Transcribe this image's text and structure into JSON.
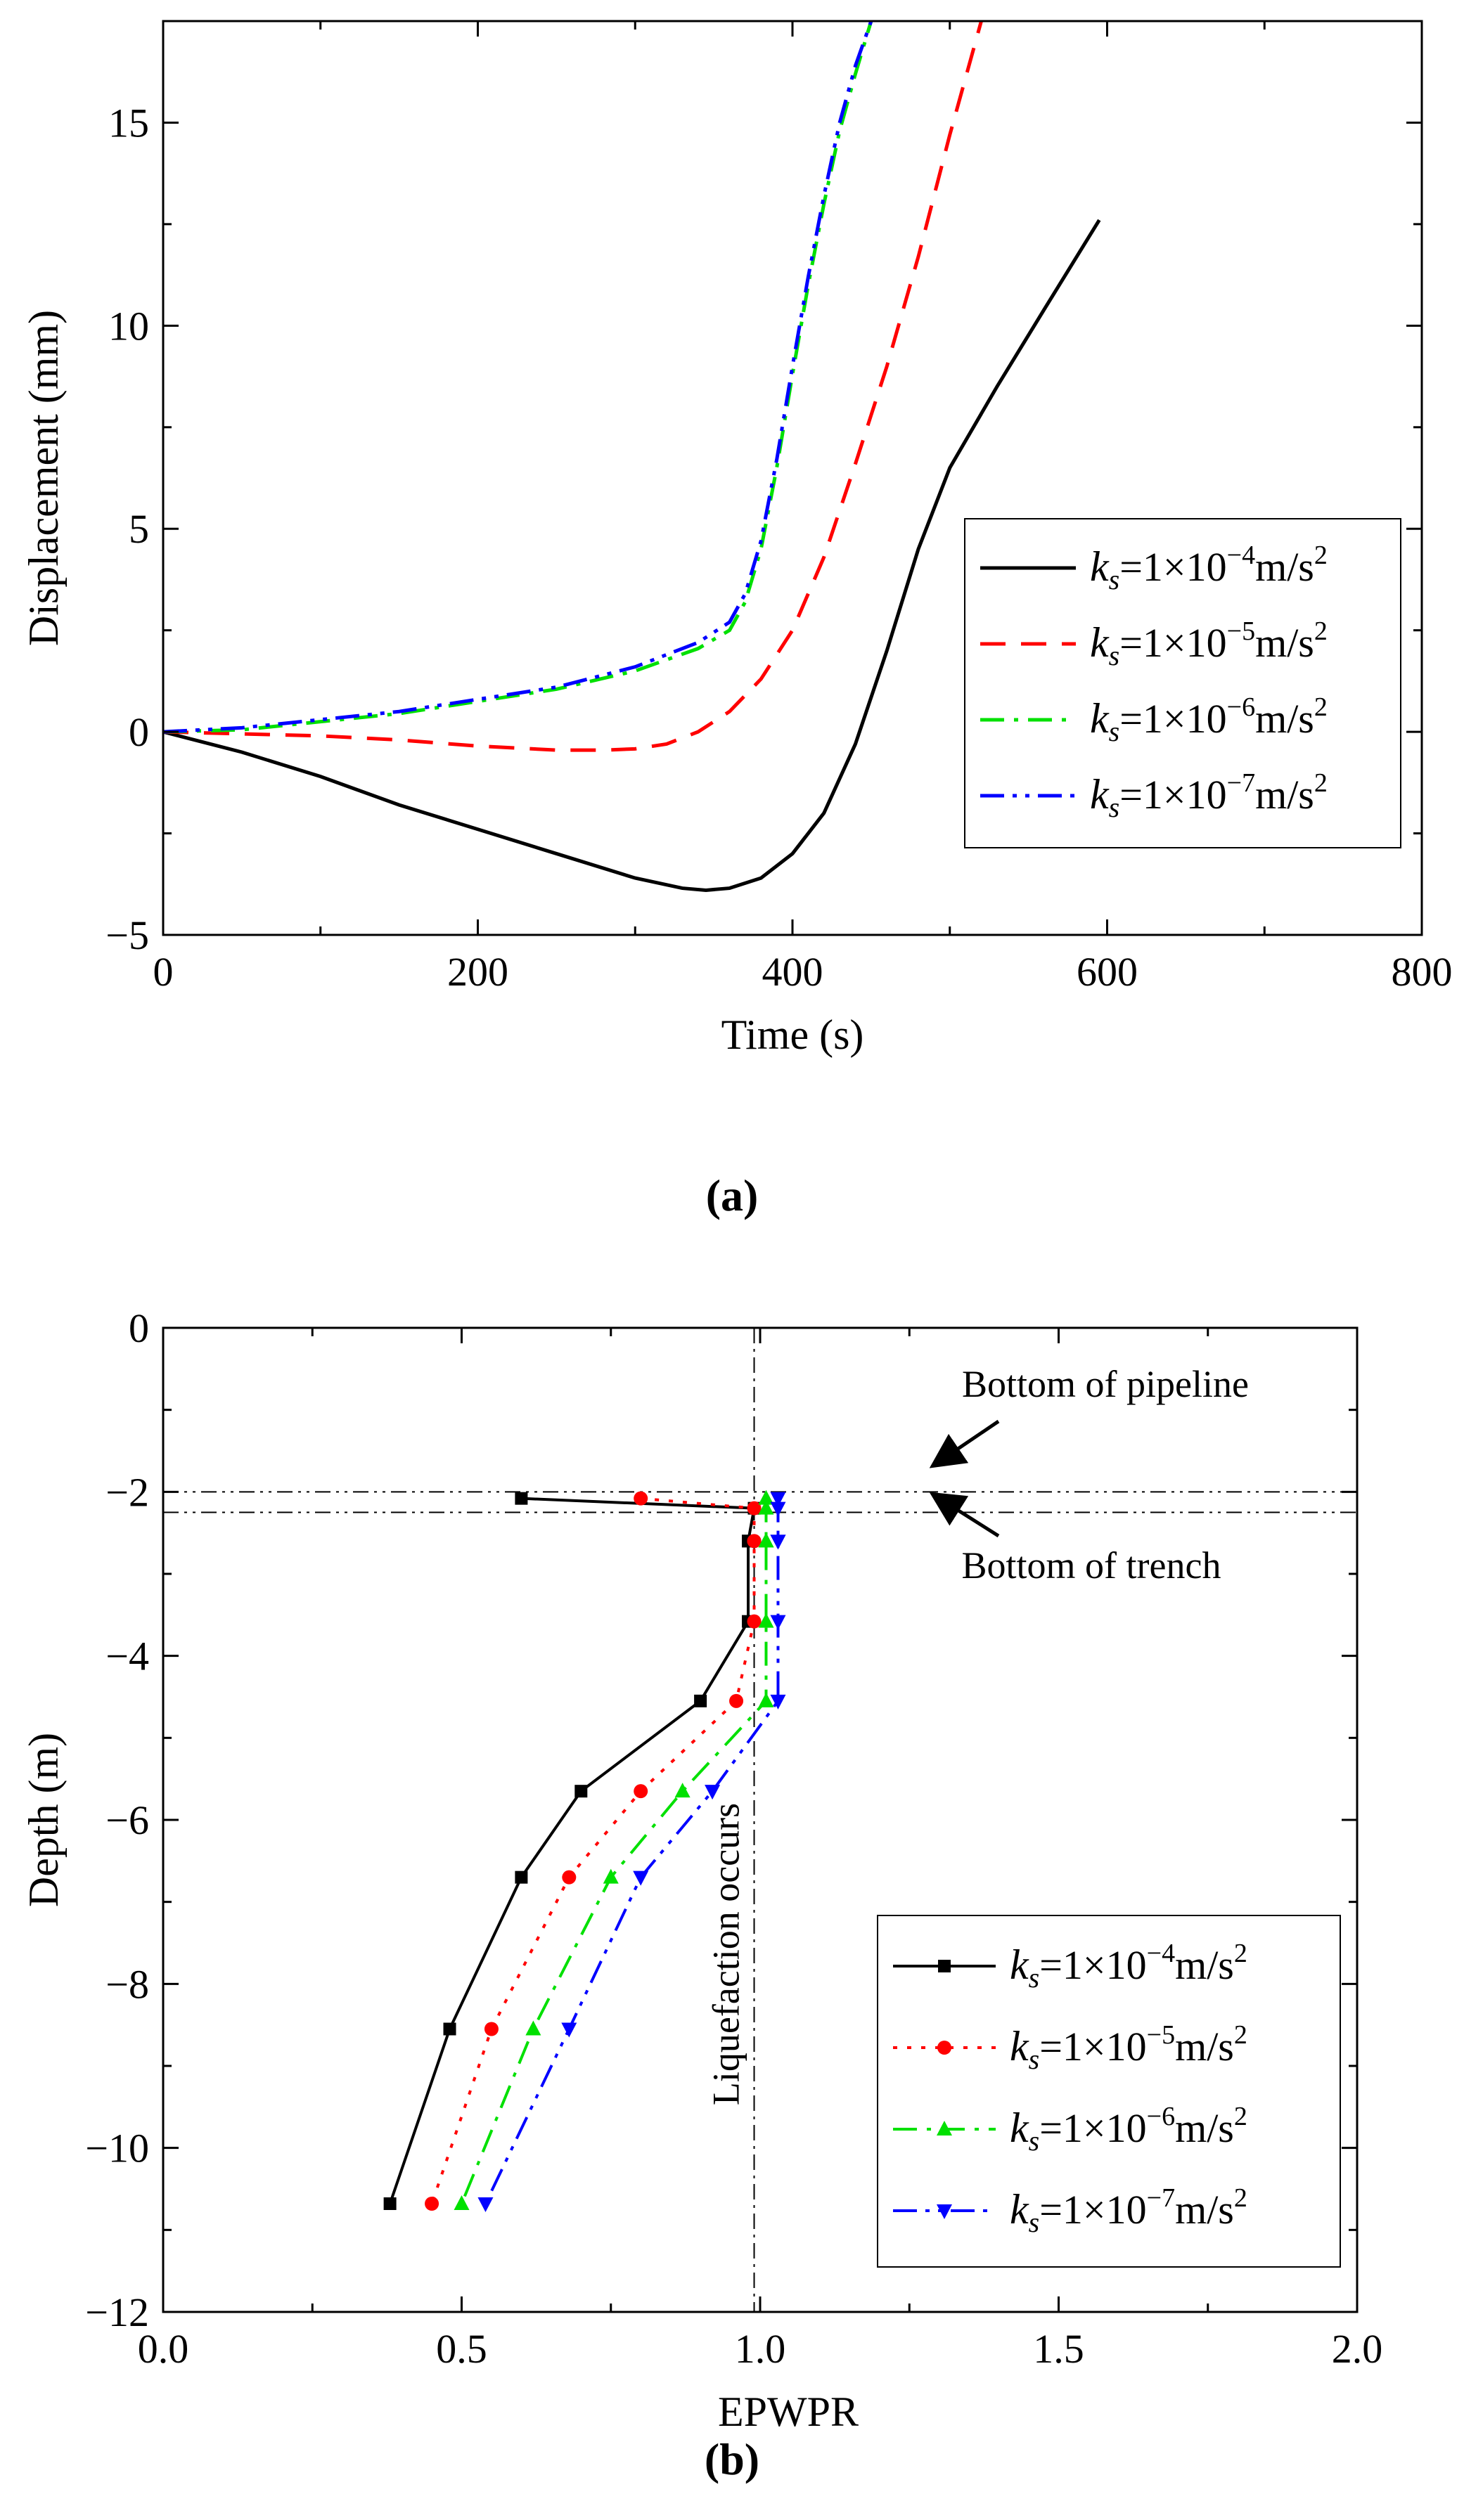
{
  "chart_data": [
    {
      "type": "line",
      "panel_label": "(a)",
      "xlabel": "Time (s)",
      "ylabel": "Displacement (mm)",
      "xlim": [
        0,
        800
      ],
      "ylim": [
        -5,
        17.5
      ],
      "xticks": [
        0,
        200,
        400,
        600,
        800
      ],
      "yticks": [
        -5,
        0,
        5,
        10,
        15
      ],
      "legend_position": "center-right",
      "series": [
        {
          "name": "k_s=1×10^-4 m/s^2",
          "legend_label": {
            "k": "k",
            "sub": "s",
            "text": "=1×10",
            "exp": "−4",
            "unit": "m/s",
            "unit_exp": "2"
          },
          "color": "#000000",
          "dash": "solid",
          "x": [
            0,
            20,
            50,
            100,
            150,
            200,
            250,
            300,
            330,
            345,
            360,
            380,
            400,
            420,
            440,
            460,
            480,
            500,
            530,
            560,
            595
          ],
          "y": [
            0,
            -0.2,
            -0.5,
            -1.1,
            -1.8,
            -2.4,
            -3.0,
            -3.6,
            -3.85,
            -3.9,
            -3.85,
            -3.6,
            -3.0,
            -2.0,
            -0.3,
            2.0,
            4.5,
            6.5,
            8.5,
            10.4,
            12.6
          ]
        },
        {
          "name": "k_s=1×10^-5 m/s^2",
          "legend_label": {
            "k": "k",
            "sub": "s",
            "text": "=1×10",
            "exp": "−5",
            "unit": "m/s",
            "unit_exp": "2"
          },
          "color": "#ff0000",
          "dash": "dashed",
          "x": [
            0,
            50,
            100,
            150,
            200,
            250,
            280,
            300,
            320,
            340,
            360,
            380,
            400,
            420,
            440,
            460,
            480,
            500,
            520
          ],
          "y": [
            0,
            -0.05,
            -0.1,
            -0.2,
            -0.35,
            -0.45,
            -0.45,
            -0.42,
            -0.3,
            0.0,
            0.5,
            1.3,
            2.5,
            4.3,
            6.6,
            9.0,
            11.7,
            14.7,
            17.5
          ]
        },
        {
          "name": "k_s=1×10^-6 m/s^2",
          "legend_label": {
            "k": "k",
            "sub": "s",
            "text": "=1×10",
            "exp": "−6",
            "unit": "m/s",
            "unit_exp": "2"
          },
          "color": "#00e000",
          "dash": "dashdot",
          "x": [
            0,
            50,
            100,
            150,
            200,
            250,
            300,
            340,
            360,
            370,
            380,
            390,
            400,
            410,
            420,
            430,
            440,
            450
          ],
          "y": [
            0,
            0.05,
            0.25,
            0.45,
            0.75,
            1.05,
            1.5,
            2.05,
            2.5,
            3.2,
            4.5,
            6.5,
            8.8,
            11.0,
            13.0,
            14.8,
            16.2,
            17.5
          ]
        },
        {
          "name": "k_s=1×10^-7 m/s^2",
          "legend_label": {
            "k": "k",
            "sub": "s",
            "text": "=1×10",
            "exp": "−7",
            "unit": "m/s",
            "unit_exp": "2"
          },
          "color": "#0000ff",
          "dash": "dashdotdot",
          "x": [
            0,
            50,
            100,
            150,
            200,
            250,
            300,
            340,
            360,
            370,
            380,
            390,
            400,
            410,
            420,
            430,
            440,
            450
          ],
          "y": [
            0,
            0.1,
            0.3,
            0.5,
            0.8,
            1.1,
            1.6,
            2.2,
            2.7,
            3.4,
            4.7,
            6.7,
            9.0,
            11.2,
            13.2,
            15.0,
            16.4,
            17.5
          ]
        }
      ]
    },
    {
      "type": "line",
      "panel_label": "(b)",
      "xlabel": "EPWPR",
      "ylabel": "Depth (m)",
      "xlim": [
        0,
        2
      ],
      "ylim": [
        -12,
        0
      ],
      "xticks": [
        0.0,
        0.5,
        1.0,
        1.5,
        2.0
      ],
      "xtick_labels": [
        "0.0",
        "0.5",
        "1.0",
        "1.5",
        "2.0"
      ],
      "yticks": [
        -12,
        -10,
        -8,
        -6,
        -4,
        -2,
        0
      ],
      "legend_position": "lower-right",
      "reference_lines": {
        "bottom_of_pipeline_depth": -2.0,
        "bottom_of_trench_depth": -2.25,
        "liquefaction_epwpr": 0.99
      },
      "annotations": {
        "pipeline": "Bottom of pipeline",
        "trench": "Bottom of trench",
        "liquefaction": "Liquefaction occurs"
      },
      "series": [
        {
          "name": "k_s=1×10^-4 m/s^2",
          "legend_label": {
            "k": "k",
            "sub": "s",
            "text": "=1×10",
            "exp": "−4",
            "unit": "m/s",
            "unit_exp": "2"
          },
          "color": "#000000",
          "dash": "solid",
          "marker": "square",
          "x": [
            0.6,
            0.99,
            0.98,
            0.98,
            0.98,
            0.9,
            0.7,
            0.6,
            0.48,
            0.38
          ],
          "y": [
            -2.08,
            -2.2,
            -2.6,
            -2.6,
            -3.58,
            -4.55,
            -5.65,
            -6.7,
            -8.55,
            -10.68
          ]
        },
        {
          "name": "k_s=1×10^-5 m/s^2",
          "legend_label": {
            "k": "k",
            "sub": "s",
            "text": "=1×10",
            "exp": "−5",
            "unit": "m/s",
            "unit_exp": "2"
          },
          "color": "#ff0000",
          "dash": "dotted",
          "marker": "circle",
          "x": [
            0.8,
            0.99,
            0.99,
            0.99,
            0.99,
            0.96,
            0.8,
            0.68,
            0.55,
            0.45
          ],
          "y": [
            -2.08,
            -2.2,
            -2.6,
            -2.6,
            -3.58,
            -4.55,
            -5.65,
            -6.7,
            -8.55,
            -10.68
          ]
        },
        {
          "name": "k_s=1×10^-6 m/s^2",
          "legend_label": {
            "k": "k",
            "sub": "s",
            "text": "=1×10",
            "exp": "−6",
            "unit": "m/s",
            "unit_exp": "2"
          },
          "color": "#00e000",
          "dash": "dashdot",
          "marker": "triangle-up",
          "x": [
            1.01,
            1.01,
            1.01,
            1.01,
            1.01,
            1.01,
            0.87,
            0.75,
            0.62,
            0.5
          ],
          "y": [
            -2.08,
            -2.2,
            -2.6,
            -2.6,
            -3.58,
            -4.55,
            -5.65,
            -6.7,
            -8.55,
            -10.68
          ]
        },
        {
          "name": "k_s=1×10^-7 m/s^2",
          "legend_label": {
            "k": "k",
            "sub": "s",
            "text": "=1×10",
            "exp": "−7",
            "unit": "m/s",
            "unit_exp": "2"
          },
          "color": "#0000ff",
          "dash": "dashdotdot",
          "marker": "triangle-down",
          "x": [
            1.03,
            1.03,
            1.03,
            1.03,
            1.03,
            1.03,
            0.92,
            0.8,
            0.68,
            0.54
          ],
          "y": [
            -2.08,
            -2.2,
            -2.6,
            -2.6,
            -3.58,
            -4.55,
            -5.65,
            -6.7,
            -8.55,
            -10.68
          ]
        }
      ]
    }
  ]
}
